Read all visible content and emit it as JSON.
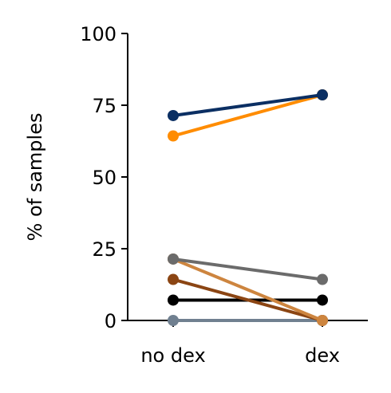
{
  "chart_data": {
    "type": "line",
    "x": [
      "no dex",
      "dex"
    ],
    "ylabel": "% of samples",
    "xlabel": "",
    "ylim": [
      0,
      100
    ],
    "yticks": [
      "0",
      "25",
      "50",
      "75",
      "100"
    ],
    "grid": false,
    "series": [
      {
        "color": "#0b2f63",
        "values": [
          71.4,
          78.6
        ]
      },
      {
        "color": "#ff8c00",
        "values": [
          64.3,
          78.6
        ]
      },
      {
        "color": "#6b6b6b",
        "values": [
          21.4,
          14.3
        ]
      },
      {
        "color": "#cd853f",
        "values": [
          21.4,
          0
        ]
      },
      {
        "color": "#8b4513",
        "values": [
          14.3,
          0
        ]
      },
      {
        "color": "#000000",
        "values": [
          7.1,
          7.1
        ]
      },
      {
        "color": "#708090",
        "values": [
          0,
          0
        ]
      }
    ]
  }
}
